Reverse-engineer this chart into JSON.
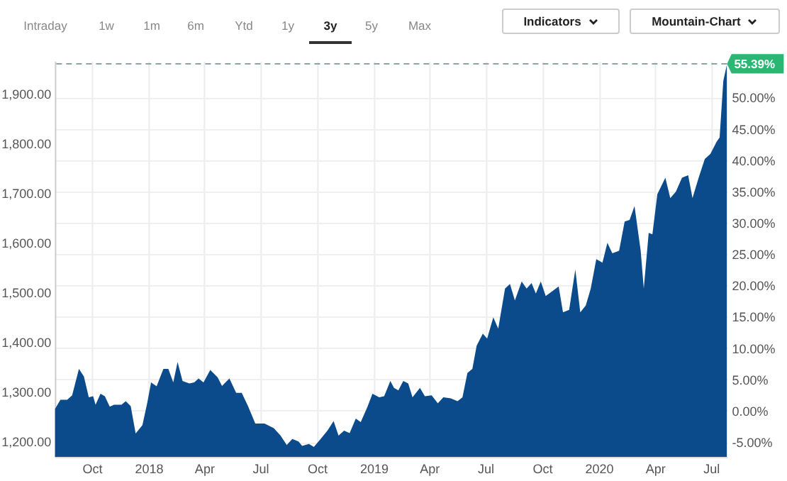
{
  "chart_data": {
    "type": "area",
    "annotations": [
      "Intraday",
      "1w",
      "1m",
      "6m",
      "Ytd",
      "1y",
      "3y",
      "5y",
      "Max",
      "Indicators",
      "Mountain-Chart"
    ],
    "x": [
      "2017-08-02",
      "2017-08-11",
      "2017-08-22",
      "2017-08-30",
      "2017-09-10",
      "2017-09-18",
      "2017-09-26",
      "2017-10-03",
      "2017-10-07",
      "2017-10-15",
      "2017-10-22",
      "2017-10-30",
      "2017-11-06",
      "2017-11-18",
      "2017-11-25",
      "2017-12-03",
      "2017-12-11",
      "2017-12-22",
      "2017-12-30",
      "2018-01-05",
      "2018-01-14",
      "2018-01-25",
      "2018-02-02",
      "2018-02-10",
      "2018-02-17",
      "2018-02-25",
      "2018-03-08",
      "2018-03-16",
      "2018-03-23",
      "2018-03-31",
      "2018-04-11",
      "2018-04-23",
      "2018-04-30",
      "2018-05-12",
      "2018-05-23",
      "2018-06-01",
      "2018-06-11",
      "2018-06-23",
      "2018-07-08",
      "2018-07-23",
      "2018-08-03",
      "2018-08-13",
      "2018-08-22",
      "2018-09-01",
      "2018-09-07",
      "2018-09-18",
      "2018-09-26",
      "2018-10-07",
      "2018-10-18",
      "2018-10-28",
      "2018-11-05",
      "2018-11-14",
      "2018-11-23",
      "2018-12-03",
      "2018-12-11",
      "2018-12-22",
      "2018-12-30",
      "2019-01-10",
      "2019-01-18",
      "2019-01-28",
      "2019-02-03",
      "2019-02-10",
      "2019-02-18",
      "2019-02-26",
      "2019-03-05",
      "2019-03-17",
      "2019-03-25",
      "2019-04-05",
      "2019-04-15",
      "2019-04-24",
      "2019-05-06",
      "2019-05-17",
      "2019-05-25",
      "2019-06-02",
      "2019-06-10",
      "2019-06-17",
      "2019-06-27",
      "2019-07-04",
      "2019-07-14",
      "2019-07-22",
      "2019-08-02",
      "2019-08-10",
      "2019-08-18",
      "2019-08-29",
      "2019-09-06",
      "2019-09-14",
      "2019-09-21",
      "2019-09-29",
      "2019-10-07",
      "2019-10-18",
      "2019-10-28",
      "2019-11-04",
      "2019-11-14",
      "2019-11-24",
      "2019-12-02",
      "2019-12-11",
      "2019-12-19",
      "2019-12-28",
      "2020-01-07",
      "2020-01-15",
      "2020-01-23",
      "2020-02-03",
      "2020-02-12",
      "2020-02-20",
      "2020-02-28",
      "2020-03-09",
      "2020-03-14",
      "2020-03-22",
      "2020-03-28",
      "2020-04-05",
      "2020-04-18",
      "2020-04-26",
      "2020-05-05",
      "2020-05-15",
      "2020-05-25",
      "2020-06-01",
      "2020-06-11",
      "2020-06-21",
      "2020-06-30",
      "2020-07-10",
      "2020-07-15",
      "2020-07-21",
      "2020-07-27"
    ],
    "series": [
      {
        "color": "#0b4a8b",
        "values": [
          1264,
          1283,
          1283,
          1292,
          1345,
          1330,
          1288,
          1290,
          1273,
          1295,
          1290,
          1269,
          1273,
          1273,
          1280,
          1270,
          1215,
          1232,
          1278,
          1318,
          1310,
          1345,
          1345,
          1318,
          1359,
          1321,
          1316,
          1318,
          1326,
          1318,
          1343,
          1328,
          1311,
          1326,
          1297,
          1297,
          1271,
          1235,
          1235,
          1226,
          1211,
          1192,
          1204,
          1199,
          1190,
          1194,
          1188,
          1204,
          1221,
          1240,
          1211,
          1221,
          1216,
          1245,
          1238,
          1269,
          1295,
          1288,
          1290,
          1321,
          1307,
          1302,
          1321,
          1316,
          1288,
          1307,
          1290,
          1292,
          1276,
          1288,
          1286,
          1280,
          1288,
          1337,
          1345,
          1392,
          1416,
          1406,
          1449,
          1426,
          1507,
          1516,
          1483,
          1521,
          1507,
          1518,
          1497,
          1521,
          1492,
          1502,
          1511,
          1459,
          1464,
          1545,
          1459,
          1473,
          1507,
          1566,
          1559,
          1599,
          1578,
          1583,
          1642,
          1645,
          1673,
          1583,
          1507,
          1619,
          1616,
          1697,
          1730,
          1689,
          1702,
          1730,
          1735,
          1689,
          1730,
          1768,
          1778,
          1802,
          1811,
          1925,
          1959
        ]
      }
    ],
    "xlim": [
      "2017-08-02",
      "2020-07-27"
    ],
    "xticks": [
      {
        "value": "2017-10-01",
        "label": "Oct"
      },
      {
        "value": "2018-01-01",
        "label": "2018"
      },
      {
        "value": "2018-04-01",
        "label": "Apr"
      },
      {
        "value": "2018-07-01",
        "label": "Jul"
      },
      {
        "value": "2018-10-01",
        "label": "Oct"
      },
      {
        "value": "2019-01-01",
        "label": "2019"
      },
      {
        "value": "2019-04-01",
        "label": "Apr"
      },
      {
        "value": "2019-07-01",
        "label": "Jul"
      },
      {
        "value": "2019-10-01",
        "label": "Oct"
      },
      {
        "value": "2020-01-01",
        "label": "2020"
      },
      {
        "value": "2020-04-01",
        "label": "Apr"
      },
      {
        "value": "2020-07-01",
        "label": "Jul"
      }
    ],
    "ylim": [
      1168,
      1965
    ],
    "yticks": [
      {
        "value": 1200,
        "label": "1,200.00"
      },
      {
        "value": 1300,
        "label": "1,300.00"
      },
      {
        "value": 1400,
        "label": "1,400.00"
      },
      {
        "value": 1500,
        "label": "1,500.00"
      },
      {
        "value": 1600,
        "label": "1,600.00"
      },
      {
        "value": 1700,
        "label": "1,700.00"
      },
      {
        "value": 1800,
        "label": "1,800.00"
      },
      {
        "value": 1900,
        "label": "1,900.00"
      }
    ],
    "y2lim": [
      -7.37,
      55.83
    ],
    "y2ticks": [
      {
        "value": -5,
        "label": "-5.00%"
      },
      {
        "value": 0,
        "label": "0.00%"
      },
      {
        "value": 5,
        "label": "5.00%"
      },
      {
        "value": 10,
        "label": "10.00%"
      },
      {
        "value": 15,
        "label": "15.00%"
      },
      {
        "value": 20,
        "label": "20.00%"
      },
      {
        "value": 25,
        "label": "25.00%"
      },
      {
        "value": 30,
        "label": "30.00%"
      },
      {
        "value": 35,
        "label": "35.00%"
      },
      {
        "value": 40,
        "label": "40.00%"
      },
      {
        "value": 45,
        "label": "45.00%"
      },
      {
        "value": 50,
        "label": "50.00%"
      }
    ],
    "ref_lines": [
      {
        "axis": "y2",
        "value": 55.39,
        "label": "55.39%",
        "color": "#8aa3a8",
        "line_style": "dashed"
      }
    ],
    "grid": true
  }
}
